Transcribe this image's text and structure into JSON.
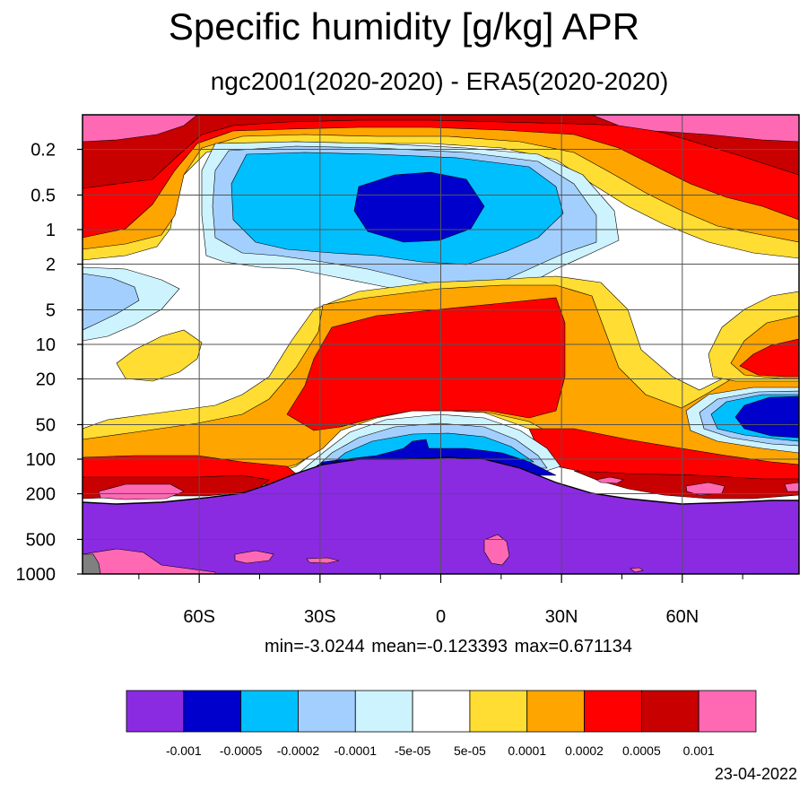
{
  "chart_data": {
    "type": "heatmap",
    "title": "Specific humidity [g/kg] APR",
    "subtitle": "ngc2001(2020-2020) - ERA5(2020-2020)",
    "x_ticks": [
      {
        "label": "60S",
        "lat": -60
      },
      {
        "label": "30S",
        "lat": -30
      },
      {
        "label": "0",
        "lat": 0
      },
      {
        "label": "30N",
        "lat": 30
      },
      {
        "label": "60N",
        "lat": 60
      }
    ],
    "x_range": [
      -89,
      89
    ],
    "y_ticks": [
      {
        "label": "0.2",
        "p": 0.2
      },
      {
        "label": "0.5",
        "p": 0.5
      },
      {
        "label": "1",
        "p": 1
      },
      {
        "label": "2",
        "p": 2
      },
      {
        "label": "5",
        "p": 5
      },
      {
        "label": "10",
        "p": 10
      },
      {
        "label": "20",
        "p": 20
      },
      {
        "label": "50",
        "p": 50
      },
      {
        "label": "100",
        "p": 100
      },
      {
        "label": "200",
        "p": 200
      },
      {
        "label": "500",
        "p": 500
      },
      {
        "label": "1000",
        "p": 1000
      }
    ],
    "y_range": [
      0.1,
      1000
    ],
    "y_scale": "log",
    "y_reversed": true,
    "grid": true,
    "stats": {
      "min": "-3.0244",
      "mean": "-0.123393",
      "max": "0.671134"
    },
    "stats_text": "min=-3.0244   mean=-0.123393   max=0.671134",
    "colorbar": {
      "colors": [
        "#8a2be2",
        "#0000cd",
        "#00bfff",
        "#a3cfff",
        "#cdf3ff",
        "#ffffff",
        "#ffdd33",
        "#ffa500",
        "#ff0000",
        "#c80000",
        "#ff69b4"
      ],
      "labels": [
        "-0.001",
        "-0.0005",
        "-0.0002",
        "-0.0001",
        "-5e-05",
        "5e-05",
        "0.0001",
        "0.0002",
        "0.0005",
        "0.001"
      ]
    }
  },
  "footer": {
    "date": "23-04-2022"
  }
}
